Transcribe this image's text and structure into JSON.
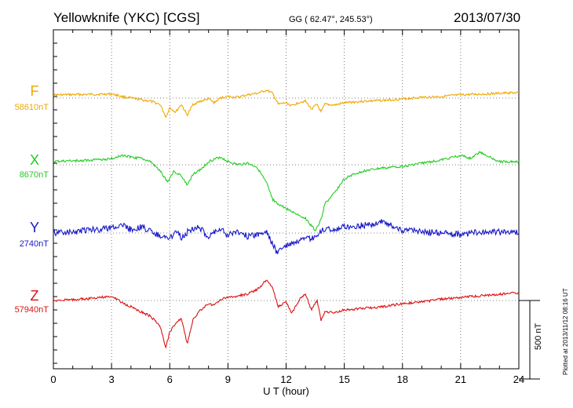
{
  "header": {
    "station": "Yellowknife (YKC)  [CGS]",
    "coords": "GG ( 62.47°, 245.53°)",
    "date": "2013/07/30"
  },
  "side_note": "Plotted at 2013/11/12 08:16 UT",
  "scale_label": "500 nT",
  "chart_data": {
    "type": "line",
    "title": "Yellowknife (YKC)  [CGS]",
    "xlabel": "U T (hour)",
    "ylabel": "",
    "xlim": [
      0,
      24
    ],
    "xticks": [
      0,
      3,
      6,
      9,
      12,
      15,
      18,
      21,
      24
    ],
    "tick_labels": [
      "0",
      "3",
      "6",
      "9",
      "12",
      "15",
      "18",
      "21",
      "24"
    ],
    "scale_bar_nT": 500,
    "grid": "dotted at every 3 hours and at each channel baseline",
    "series": [
      {
        "name": "F",
        "baseline_label": "58610nT",
        "color": "#f0a800",
        "x": [
          0,
          1,
          2,
          3,
          3.3,
          3.6,
          4,
          4.5,
          5,
          5.5,
          5.8,
          6,
          6.3,
          6.6,
          6.9,
          7.2,
          7.6,
          8,
          8.3,
          8.6,
          9,
          9.5,
          10,
          10.5,
          11,
          11.3,
          11.6,
          12,
          12.3,
          12.7,
          13,
          13.3,
          13.6,
          13.8,
          14,
          14.5,
          15,
          16,
          17,
          18,
          19,
          20,
          21,
          22,
          23,
          24
        ],
        "y": [
          20,
          22,
          24,
          26,
          18,
          8,
          0,
          -10,
          -20,
          -40,
          -120,
          -60,
          -90,
          -40,
          -110,
          -40,
          -20,
          -5,
          -30,
          0,
          10,
          5,
          20,
          30,
          50,
          30,
          -40,
          -30,
          -50,
          -25,
          -20,
          -70,
          -40,
          -90,
          -40,
          -45,
          -30,
          -20,
          -15,
          -5,
          5,
          10,
          20,
          25,
          30,
          35
        ]
      },
      {
        "name": "X",
        "baseline_label": "8670nT",
        "color": "#22cc22",
        "x": [
          0,
          1,
          2,
          3,
          3.5,
          4,
          4.5,
          5,
          5.5,
          5.9,
          6.2,
          6.6,
          6.9,
          7.2,
          7.6,
          8,
          8.3,
          8.6,
          9,
          9.5,
          10,
          10.5,
          11,
          11.3,
          11.6,
          12,
          12.5,
          13,
          13.5,
          13.8,
          14,
          14.5,
          15,
          15.5,
          16,
          17,
          18,
          19,
          20,
          21,
          21.5,
          22,
          23,
          24
        ],
        "y": [
          20,
          25,
          30,
          40,
          60,
          50,
          40,
          20,
          -40,
          -110,
          -40,
          -70,
          -130,
          -60,
          -30,
          20,
          35,
          50,
          20,
          0,
          10,
          -15,
          -120,
          -220,
          -250,
          -280,
          -310,
          -340,
          -420,
          -350,
          -250,
          -180,
          -90,
          -60,
          -40,
          -20,
          -10,
          10,
          30,
          60,
          40,
          80,
          20,
          20
        ]
      },
      {
        "name": "Y",
        "baseline_label": "2740nT",
        "color": "#1818c8",
        "x": [
          0,
          1,
          2,
          3,
          3.5,
          4,
          4.5,
          5,
          5.5,
          6,
          6.3,
          6.6,
          7,
          7.5,
          8,
          8.5,
          9,
          9.5,
          10,
          10.5,
          11,
          11.5,
          12,
          12.5,
          13,
          13.5,
          14,
          14.5,
          15,
          16,
          17,
          18,
          19,
          20,
          21,
          22,
          23,
          24
        ],
        "y": [
          0,
          10,
          20,
          30,
          50,
          20,
          40,
          10,
          -20,
          -40,
          20,
          -30,
          15,
          40,
          -25,
          30,
          -10,
          10,
          -20,
          -10,
          10,
          -120,
          -80,
          -60,
          -40,
          -30,
          30,
          20,
          40,
          50,
          70,
          20,
          10,
          0,
          -10,
          10,
          5,
          0
        ],
        "amp": 8
      },
      {
        "name": "Z",
        "baseline_label": "57940nT",
        "color": "#dd1111",
        "x": [
          0,
          1,
          2,
          3,
          3.3,
          3.6,
          4,
          4.5,
          5,
          5.5,
          5.8,
          6,
          6.3,
          6.6,
          6.9,
          7.2,
          7.6,
          8,
          8.3,
          8.6,
          9,
          9.5,
          10,
          10.5,
          11,
          11.3,
          11.6,
          12,
          12.3,
          12.7,
          13,
          13.3,
          13.6,
          13.8,
          14,
          14.5,
          15,
          16,
          17,
          18,
          19,
          20,
          21,
          22,
          23,
          24
        ],
        "y": [
          0,
          5,
          15,
          25,
          10,
          -20,
          -40,
          -70,
          -100,
          -160,
          -300,
          -200,
          -150,
          -110,
          -280,
          -120,
          -60,
          -20,
          -30,
          5,
          20,
          30,
          40,
          70,
          130,
          80,
          -40,
          -10,
          -80,
          10,
          40,
          -60,
          0,
          -130,
          -70,
          -80,
          -60,
          -50,
          -40,
          -20,
          -10,
          10,
          20,
          30,
          40,
          50
        ]
      }
    ]
  }
}
